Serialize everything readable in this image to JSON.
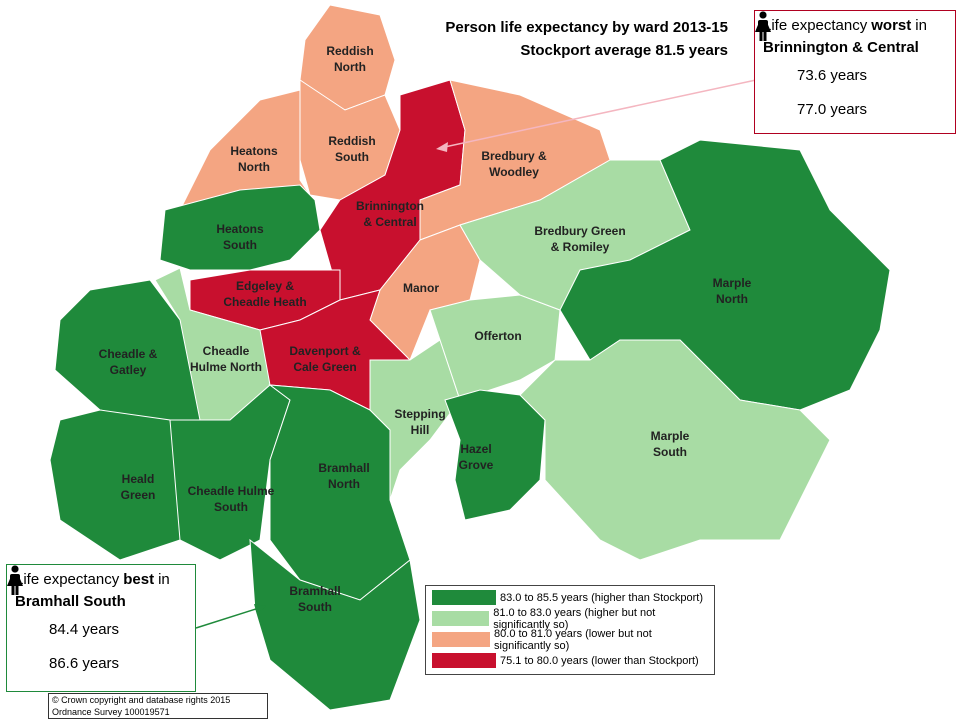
{
  "title": "Person life expectancy by ward 2013-15",
  "subtitle": "Stockport average 81.5 years",
  "wards": [
    {
      "lines": [
        "Reddish",
        "North"
      ],
      "color": "#f4a582"
    },
    {
      "lines": [
        "Reddish",
        "South"
      ],
      "color": "#f4a582"
    },
    {
      "lines": [
        "Brinnington",
        "& Central"
      ],
      "color": "#c8102e"
    },
    {
      "lines": [
        "Bredbury &",
        "Woodley"
      ],
      "color": "#f4a582"
    },
    {
      "lines": [
        "Heatons",
        "North"
      ],
      "color": "#f4a582"
    },
    {
      "lines": [
        "Heatons",
        "South"
      ],
      "color": "#1f8a3b"
    },
    {
      "lines": [
        "Manor"
      ],
      "color": "#f4a582"
    },
    {
      "lines": [
        "Edgeley &",
        "Cheadle Heath"
      ],
      "color": "#c8102e"
    },
    {
      "lines": [
        "Davenport &",
        "Cale Green"
      ],
      "color": "#c8102e"
    },
    {
      "lines": [
        "Cheadle",
        "Hulme North"
      ],
      "color": "#a8dca4"
    },
    {
      "lines": [
        "Cheadle &",
        "Gatley"
      ],
      "color": "#1f8a3b"
    },
    {
      "lines": [
        "Heald",
        "Green"
      ],
      "color": "#1f8a3b"
    },
    {
      "lines": [
        "Cheadle Hulme",
        "South"
      ],
      "color": "#1f8a3b"
    },
    {
      "lines": [
        "Bramhall",
        "North"
      ],
      "color": "#1f8a3b"
    },
    {
      "lines": [
        "Bramhall",
        "South"
      ],
      "color": "#1f8a3b"
    },
    {
      "lines": [
        "Stepping",
        "Hill"
      ],
      "color": "#a8dca4"
    },
    {
      "lines": [
        "Offerton"
      ],
      "color": "#a8dca4"
    },
    {
      "lines": [
        "Hazel",
        "Grove"
      ],
      "color": "#1f8a3b"
    },
    {
      "lines": [
        "Bredbury Green",
        "& Romiley"
      ],
      "color": "#a8dca4"
    },
    {
      "lines": [
        "Marple",
        "North"
      ],
      "color": "#1f8a3b"
    },
    {
      "lines": [
        "Marple",
        "South"
      ],
      "color": "#a8dca4"
    }
  ],
  "legend": [
    {
      "label": "83.0 to 85.5 years (higher than Stockport)",
      "color": "#1f8a3b"
    },
    {
      "label": "81.0 to 83.0 years (higher but not significantly so)",
      "color": "#a8dca4"
    },
    {
      "label": "80.0 to 81.0 years (lower but not significantly so)",
      "color": "#f4a582"
    },
    {
      "label": "75.1 to 80.0 years (lower than Stockport)",
      "color": "#c8102e"
    }
  ],
  "worst": {
    "before": "Life expectancy",
    "emphasis": "worst",
    "after": "in",
    "ward": "Brinnington & Central",
    "male": "73.6 years",
    "female": "77.0 years"
  },
  "best": {
    "before": "Life expectancy",
    "emphasis": "best",
    "after": "in",
    "ward": "Bramhall South",
    "male": "84.4 years",
    "female": "86.6 years"
  },
  "copyright": [
    "© Crown copyright and database rights 2015",
    "Ordnance Survey 100019571"
  ]
}
